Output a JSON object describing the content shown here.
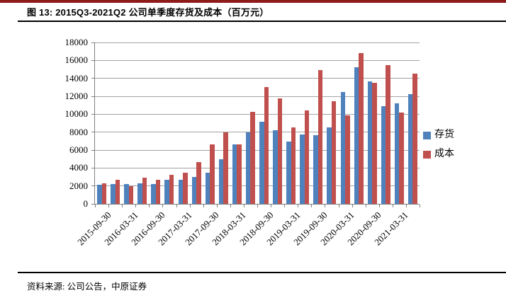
{
  "header": {
    "title": "图 13:  2015Q3-2021Q2 公司单季度存货及成本（百万元）"
  },
  "footer": {
    "source": "资料来源: 公司公告，中原证券"
  },
  "colors": {
    "top_rule": "#8e1b1b",
    "inventory_blue": "#4f81bd",
    "cost_red": "#c0504d",
    "gridline": "#a3a3a3",
    "axis": "#7f7f7f"
  },
  "chart_data": {
    "type": "bar",
    "title": "2015Q3-2021Q2 公司单季度存货及成本（百万元）",
    "xlabel": "",
    "ylabel": "",
    "ylim": [
      0,
      18000
    ],
    "ytick_step": 2000,
    "ytick_labels": [
      "0",
      "2000",
      "4000",
      "6000",
      "8000",
      "10000",
      "12000",
      "14000",
      "16000",
      "18000"
    ],
    "grid": true,
    "legend_position": "right",
    "categories": [
      "2015-09-30",
      "2015-12-31",
      "2016-03-31",
      "2016-06-30",
      "2016-09-30",
      "2016-12-31",
      "2017-03-31",
      "2017-06-30",
      "2017-09-30",
      "2017-12-31",
      "2018-03-31",
      "2018-06-30",
      "2018-09-30",
      "2018-12-31",
      "2019-03-31",
      "2019-06-30",
      "2019-09-30",
      "2019-12-31",
      "2020-03-31",
      "2020-06-30",
      "2020-09-30",
      "2020-12-31",
      "2021-03-31",
      "2021-06-30"
    ],
    "x_tick_labels_shown": [
      "2015-09-30",
      "2016-03-31",
      "2016-09-30",
      "2017-03-31",
      "2017-09-30",
      "2018-03-31",
      "2018-09-30",
      "2019-03-31",
      "2019-09-30",
      "2020-03-31",
      "2020-09-30",
      "2021-03-31"
    ],
    "series": [
      {
        "name": "存货",
        "color": "#4f81bd",
        "values": [
          2100,
          2200,
          2250,
          2300,
          2250,
          2700,
          2700,
          3000,
          3500,
          5000,
          6650,
          8000,
          9150,
          8200,
          6950,
          7750,
          7650,
          8550,
          12450,
          15250,
          13650,
          10900,
          11200,
          12250
        ]
      },
      {
        "name": "成本",
        "color": "#c0504d",
        "values": [
          2300,
          2650,
          2000,
          2900,
          2650,
          3200,
          3450,
          4650,
          6650,
          8000,
          6650,
          10250,
          13000,
          11800,
          8500,
          10400,
          14900,
          11450,
          9850,
          16800,
          13500,
          15450,
          10200,
          14550
        ]
      }
    ]
  }
}
